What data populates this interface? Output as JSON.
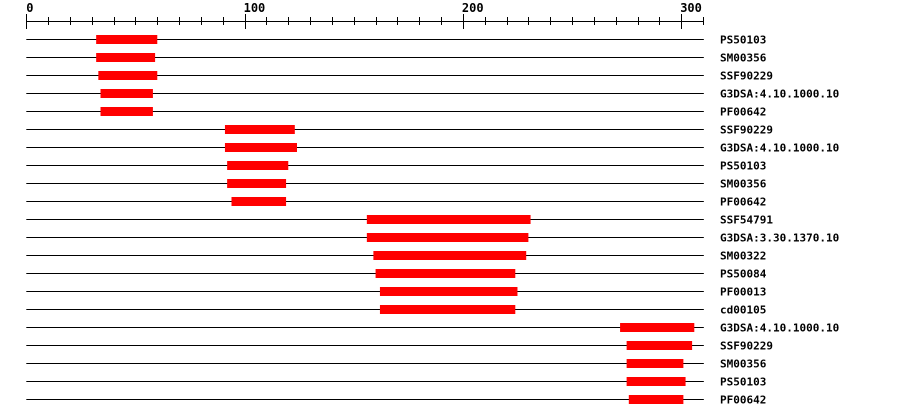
{
  "axis": {
    "min": 0,
    "max": 310,
    "minor_step": 10,
    "major_step": 100,
    "labels": [
      "0",
      "100",
      "200",
      "300"
    ]
  },
  "colors": {
    "domain": "#ff0000",
    "line": "#000000"
  },
  "rows": [
    {
      "label": "PS50103",
      "start": 32,
      "end": 60
    },
    {
      "label": "SM00356",
      "start": 32,
      "end": 59
    },
    {
      "label": "SSF90229",
      "start": 33,
      "end": 60
    },
    {
      "label": "G3DSA:4.10.1000.10",
      "start": 34,
      "end": 58
    },
    {
      "label": "PF00642",
      "start": 34,
      "end": 58
    },
    {
      "label": "SSF90229",
      "start": 91,
      "end": 123
    },
    {
      "label": "G3DSA:4.10.1000.10",
      "start": 91,
      "end": 124
    },
    {
      "label": "PS50103",
      "start": 92,
      "end": 120
    },
    {
      "label": "SM00356",
      "start": 92,
      "end": 119
    },
    {
      "label": "PF00642",
      "start": 94,
      "end": 119
    },
    {
      "label": "SSF54791",
      "start": 156,
      "end": 231
    },
    {
      "label": "G3DSA:3.30.1370.10",
      "start": 156,
      "end": 230
    },
    {
      "label": "SM00322",
      "start": 159,
      "end": 229
    },
    {
      "label": "PS50084",
      "start": 160,
      "end": 224
    },
    {
      "label": "PF00013",
      "start": 162,
      "end": 225
    },
    {
      "label": "cd00105",
      "start": 162,
      "end": 224
    },
    {
      "label": "G3DSA:4.10.1000.10",
      "start": 272,
      "end": 306
    },
    {
      "label": "SSF90229",
      "start": 275,
      "end": 305
    },
    {
      "label": "SM00356",
      "start": 275,
      "end": 301
    },
    {
      "label": "PS50103",
      "start": 275,
      "end": 302
    },
    {
      "label": "PF00642",
      "start": 276,
      "end": 301
    }
  ]
}
